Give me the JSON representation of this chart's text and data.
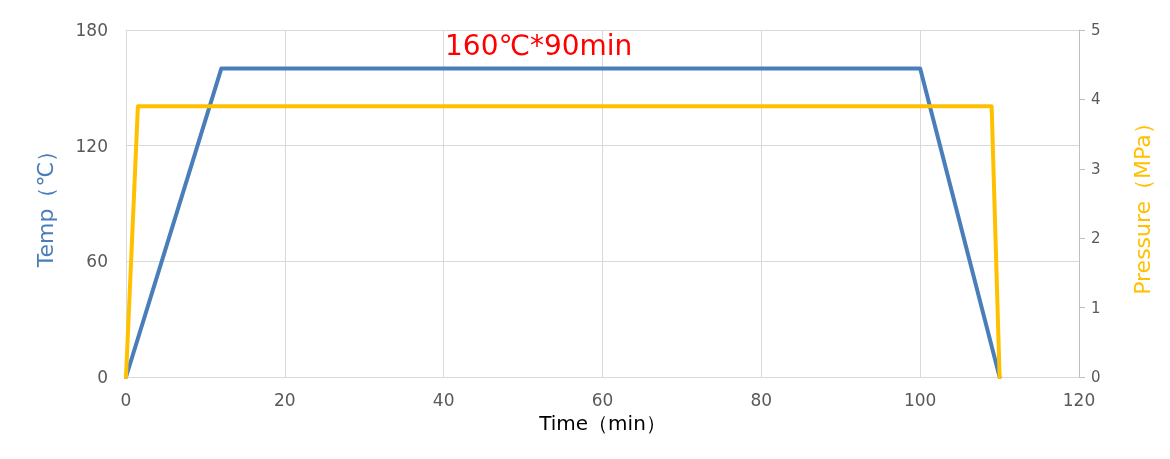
{
  "chart_data": {
    "type": "line",
    "annotations": [
      "160℃*90min"
    ],
    "xlabel": "Time（min）",
    "ylabel": "Temp（℃）",
    "y2label": "Pressure（MPa）",
    "xlim": [
      0,
      120
    ],
    "xticks": [
      0,
      20,
      40,
      60,
      80,
      100,
      120
    ],
    "ylim": [
      0,
      180
    ],
    "yticks": [
      0,
      60,
      120,
      180
    ],
    "y2lim": [
      0,
      5
    ],
    "y2ticks": [
      0,
      1,
      2,
      3,
      4,
      5
    ],
    "grid": true,
    "marker": "none",
    "line_style": "solid",
    "series": [
      {
        "color": "#4a7ebb",
        "x": [
          0,
          12,
          100,
          110
        ],
        "values": [
          0,
          160,
          160,
          0
        ]
      },
      {
        "color": "#ffc000",
        "axis": "y2",
        "x": [
          0,
          1.5,
          109,
          110
        ],
        "values": [
          0,
          3.9,
          3.9,
          0
        ]
      }
    ]
  }
}
